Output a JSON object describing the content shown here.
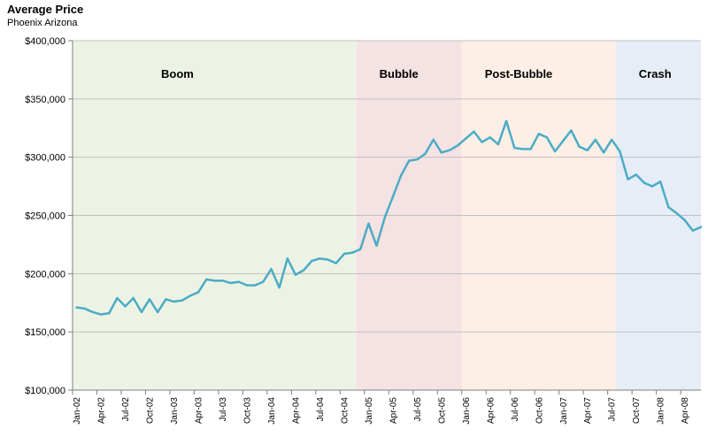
{
  "chart_data": {
    "type": "line",
    "title": "Average Price",
    "subtitle": "Phoenix Arizona",
    "xlabel": "",
    "ylabel": "",
    "ylim": [
      100000,
      400000
    ],
    "y_ticks": [
      100000,
      150000,
      200000,
      250000,
      300000,
      350000,
      400000
    ],
    "y_tick_labels": [
      "$100,000",
      "$150,000",
      "$200,000",
      "$250,000",
      "$300,000",
      "$350,000",
      "$400,000"
    ],
    "grid": "horizontal",
    "x_tick_labels": [
      "Jan-02",
      "Apr-02",
      "Jul-02",
      "Oct-02",
      "Jan-03",
      "Apr-03",
      "Jul-03",
      "Oct-03",
      "Jan-04",
      "Apr-04",
      "Jul-04",
      "Oct-04",
      "Jan-05",
      "Apr-05",
      "Jul-05",
      "Oct-05",
      "Jan-06",
      "Apr-06",
      "Jul-06",
      "Oct-06",
      "Jan-07",
      "Apr-07",
      "Jul-07",
      "Oct-07",
      "Jan-08",
      "Apr-08"
    ],
    "series_color": "#4bacc6",
    "regions": [
      {
        "label": "Boom",
        "start": "Jan-02",
        "end": "Nov-04",
        "color": "#edf3e4"
      },
      {
        "label": "Bubble",
        "start": "Dec-04",
        "end": "Dec-05",
        "color": "#f5e2e2"
      },
      {
        "label": "Post-Bubble",
        "start": "Jan-06",
        "end": "Jul-07",
        "color": "#fdefe6"
      },
      {
        "label": "Crash",
        "start": "Aug-07",
        "end": "Jun-08",
        "color": "#e6edf6"
      }
    ],
    "series": [
      {
        "x": [
          "Jan-02",
          "Feb-02",
          "Mar-02",
          "Apr-02",
          "May-02",
          "Jun-02",
          "Jul-02",
          "Aug-02",
          "Sep-02",
          "Oct-02",
          "Nov-02",
          "Dec-02",
          "Jan-03",
          "Feb-03",
          "Mar-03",
          "Apr-03",
          "May-03",
          "Jun-03",
          "Jul-03",
          "Aug-03",
          "Sep-03",
          "Oct-03",
          "Nov-03",
          "Dec-03",
          "Jan-04",
          "Feb-04",
          "Mar-04",
          "Apr-04",
          "May-04",
          "Jun-04",
          "Jul-04",
          "Aug-04",
          "Sep-04",
          "Oct-04",
          "Nov-04",
          "Dec-04",
          "Jan-05",
          "Feb-05",
          "Mar-05",
          "Apr-05",
          "May-05",
          "Jun-05",
          "Jul-05",
          "Aug-05",
          "Sep-05",
          "Oct-05",
          "Nov-05",
          "Dec-05",
          "Jan-06",
          "Feb-06",
          "Mar-06",
          "Apr-06",
          "May-06",
          "Jun-06",
          "Jul-06",
          "Aug-06",
          "Sep-06",
          "Oct-06",
          "Nov-06",
          "Dec-06",
          "Jan-07",
          "Feb-07",
          "Mar-07",
          "Apr-07",
          "May-07",
          "Jun-07",
          "Jul-07",
          "Aug-07",
          "Sep-07",
          "Oct-07",
          "Nov-07",
          "Dec-07",
          "Jan-08",
          "Feb-08",
          "Mar-08",
          "Apr-08",
          "May-08",
          "Jun-08"
        ],
        "values": [
          171000,
          170000,
          167000,
          165000,
          166000,
          179000,
          172000,
          179000,
          167000,
          178000,
          167000,
          178000,
          176000,
          177000,
          181000,
          184000,
          195000,
          194000,
          194000,
          192000,
          193000,
          190000,
          190000,
          193000,
          204000,
          188000,
          213000,
          199000,
          203000,
          211000,
          213000,
          212000,
          209000,
          217000,
          218000,
          221000,
          243000,
          224000,
          248000,
          266000,
          284000,
          297000,
          298000,
          303000,
          315000,
          304000,
          306000,
          310000,
          316000,
          322000,
          313000,
          317000,
          311000,
          331000,
          308000,
          307000,
          307000,
          320000,
          317000,
          305000,
          314000,
          323000,
          309000,
          306000,
          315000,
          304000,
          315000,
          305000,
          281000,
          285000,
          278000,
          275000,
          279000,
          257000,
          252000,
          246000,
          237000,
          240000
        ]
      }
    ]
  }
}
